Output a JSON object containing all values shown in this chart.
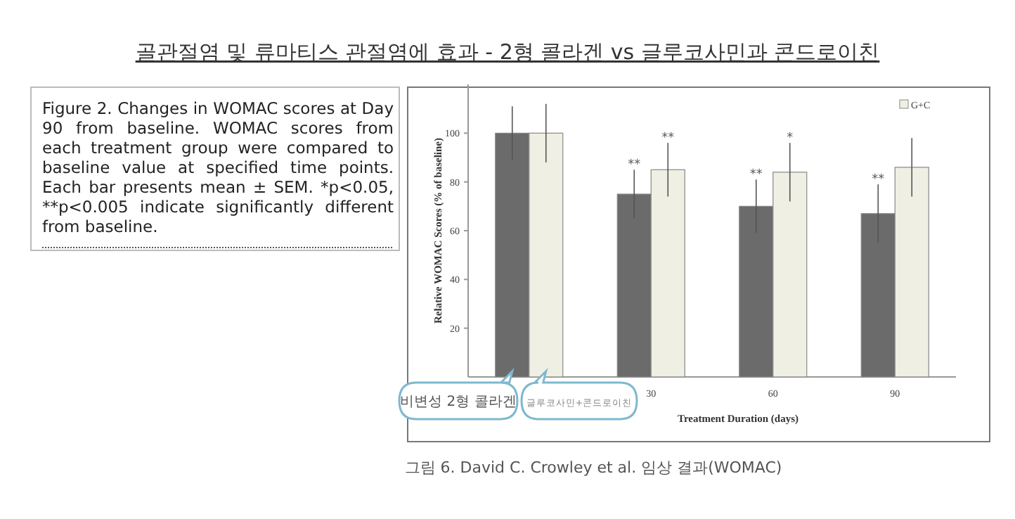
{
  "chart_data": {
    "type": "bar",
    "title": "골관절염 및 류마티스 관절염에 효과 - 2형 콜라겐 vs 글루코사민과 콘드로이친",
    "categories": [
      null,
      "30",
      "60",
      "90"
    ],
    "series": [
      {
        "color": "#6b6b6b",
        "values": [
          100,
          75,
          70,
          67
        ],
        "errors": [
          11,
          10,
          11,
          12
        ]
      },
      {
        "name": "G+C",
        "color": "#efefe4",
        "values": [
          100,
          85,
          84,
          86
        ],
        "errors": [
          12,
          11,
          12,
          12
        ]
      }
    ],
    "xlabel": "Treatment Duration (days)",
    "ylabel": "Relative WOMAC Scores (% of baseline)",
    "ylim": [
      0,
      120
    ],
    "yticks": [
      20,
      40,
      60,
      80,
      100
    ],
    "legend": "top right",
    "annotations": [
      "Figure 2. Changes in WOMAC scores at Day 90 from baseline. WOMAC scores from each treatment group were compared to baseline value at specified time points. Each bar presents mean ± SEM. *p<0.05, **p<0.005 indicate significantly different from baseline.",
      {
        "text": "**",
        "x": "30",
        "y": 75
      },
      {
        "text": "**",
        "x": "30",
        "y": 85
      },
      {
        "text": "**",
        "x": "60",
        "y": 70
      },
      {
        "text": "*",
        "x": "60",
        "y": 84
      },
      {
        "text": "**",
        "x": "90",
        "y": 67
      },
      "비변성 2형 콜라겐",
      "글루코사민+콘드로이친",
      "그림 6. David C. Crowley et al. 임상 결과(WOMAC)"
    ]
  }
}
